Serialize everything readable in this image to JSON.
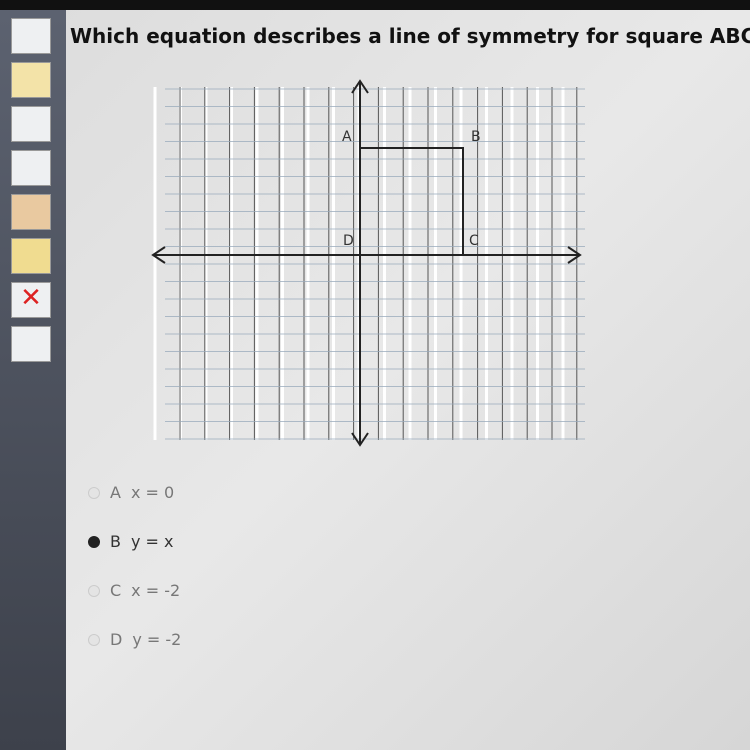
{
  "question": "Which equation describes a line of symmetry for square ABCD?",
  "graph": {
    "points": [
      {
        "label": "A"
      },
      {
        "label": "B"
      },
      {
        "label": "C"
      },
      {
        "label": "D"
      }
    ]
  },
  "choices": [
    {
      "letter": "A",
      "text": "x = 0",
      "selected": false
    },
    {
      "letter": "B",
      "text": "y = x",
      "selected": true
    },
    {
      "letter": "C",
      "text": "x = -2",
      "selected": false
    },
    {
      "letter": "D",
      "text": "y = -2",
      "selected": false
    }
  ]
}
